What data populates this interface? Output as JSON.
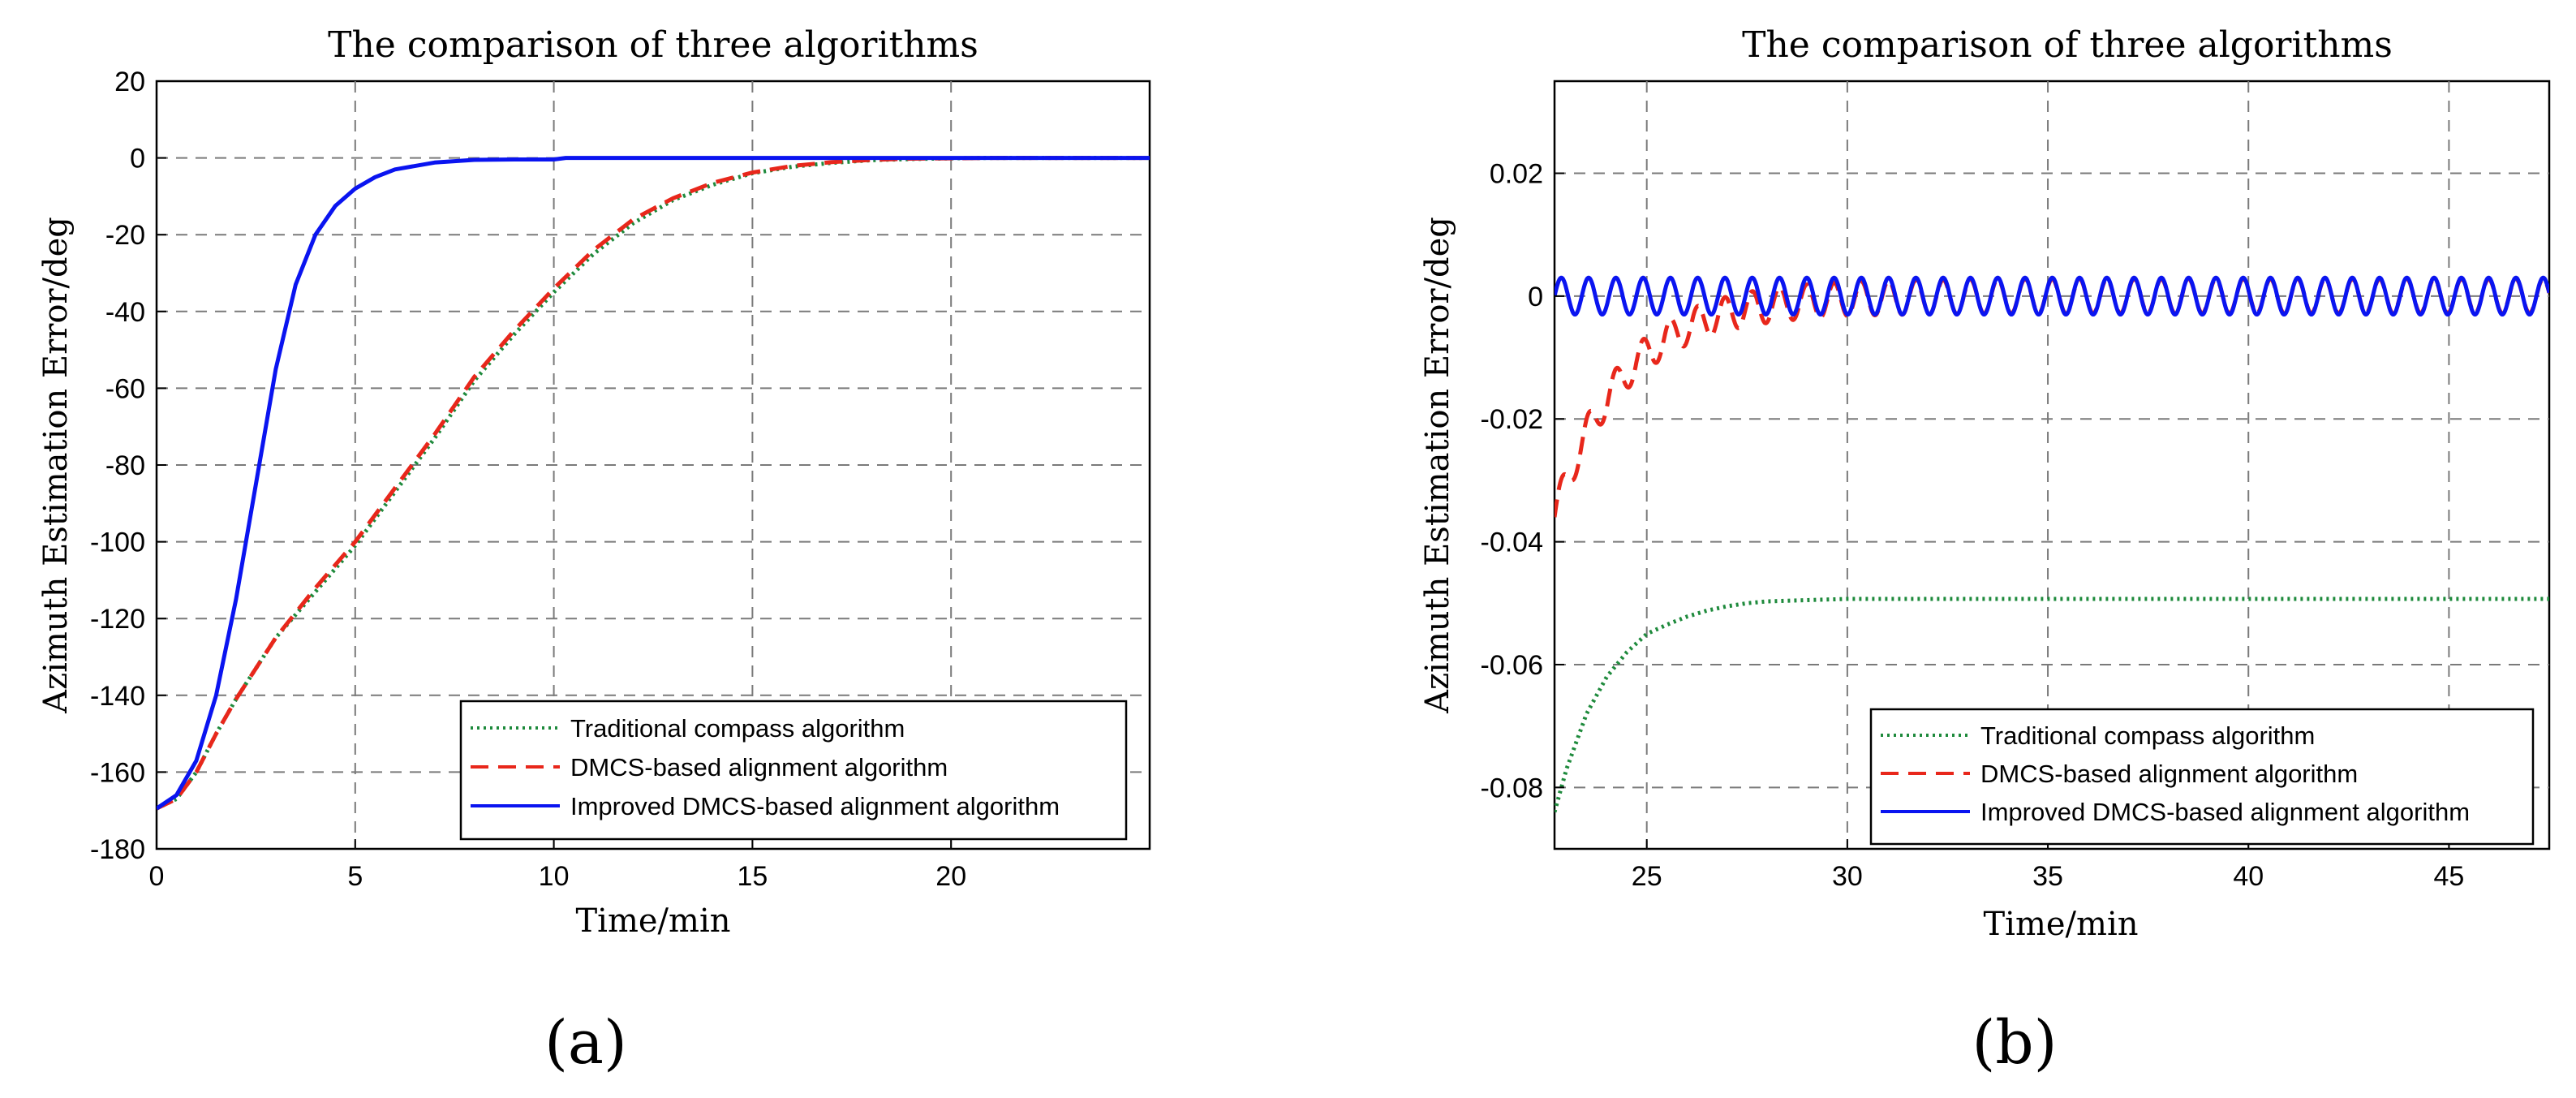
{
  "chart_data": [
    {
      "type": "line",
      "panel_label": "(a)",
      "title": "The comparison of three algorithms",
      "xlabel": "Time/min",
      "ylabel": "Azimuth Estimation Error/deg",
      "xlim": [
        0,
        25
      ],
      "ylim": [
        -180,
        20
      ],
      "xticks": [
        0,
        5,
        10,
        15,
        20
      ],
      "yticks": [
        20,
        0,
        -20,
        -40,
        -60,
        -80,
        -100,
        -120,
        -140,
        -160,
        -180
      ],
      "grid": true,
      "legend_position": "bottom-right",
      "series": [
        {
          "name": "Traditional compass algorithm",
          "color": "#1e8a3c",
          "style": "dotted",
          "x": [
            0,
            0.5,
            1,
            1.5,
            2,
            3,
            4,
            5,
            6,
            7,
            8,
            9,
            10,
            11,
            12,
            13,
            14,
            15,
            16,
            17,
            18,
            19,
            20,
            21,
            22,
            23,
            24,
            25
          ],
          "y": [
            -169.5,
            -167,
            -160,
            -150,
            -141,
            -125,
            -113,
            -101,
            -87,
            -73,
            -58,
            -46,
            -35,
            -25,
            -17,
            -11,
            -7,
            -4,
            -2.3,
            -1.3,
            -0.6,
            -0.3,
            -0.1,
            0,
            0,
            0,
            0,
            0
          ]
        },
        {
          "name": "DMCS-based alignment algorithm",
          "color": "#e8271b",
          "style": "dashed",
          "x": [
            0,
            0.5,
            1,
            1.5,
            2,
            3,
            4,
            5,
            6,
            7,
            8,
            9,
            10,
            11,
            12,
            13,
            14,
            15,
            16,
            17,
            18,
            19,
            20,
            21,
            22,
            23,
            24,
            25
          ],
          "y": [
            -169.5,
            -167,
            -160,
            -150,
            -141,
            -125,
            -112,
            -100,
            -86,
            -72,
            -57,
            -45,
            -34,
            -24,
            -16,
            -10.5,
            -6.5,
            -3.8,
            -2.1,
            -1.1,
            -0.5,
            -0.2,
            -0.1,
            0,
            0,
            0,
            0,
            0
          ]
        },
        {
          "name": "Improved DMCS-based alignment algorithm",
          "color": "#0a14f0",
          "style": "solid",
          "x": [
            0,
            0.5,
            1,
            1.5,
            2,
            2.5,
            3,
            3.5,
            4,
            4.5,
            5,
            5.5,
            6,
            7,
            8,
            9,
            10,
            10.3,
            11,
            12,
            14,
            16,
            18,
            20,
            22,
            25
          ],
          "y": [
            -169.5,
            -166,
            -157,
            -140,
            -115,
            -85,
            -55,
            -33,
            -20,
            -12.5,
            -8,
            -5,
            -3,
            -1.2,
            -0.5,
            -0.4,
            -0.4,
            0,
            0,
            0,
            0,
            0,
            0,
            0,
            0,
            0
          ]
        }
      ]
    },
    {
      "type": "line",
      "panel_label": "(b)",
      "title": "The comparison of three algorithms",
      "xlabel": "Time/min",
      "ylabel": "Azimuth Estimation Error/deg",
      "xlim": [
        22.7,
        47.5
      ],
      "ylim": [
        -0.09,
        0.035
      ],
      "xticks": [
        25,
        30,
        35,
        40,
        45
      ],
      "yticks": [
        0.02,
        0,
        -0.02,
        -0.04,
        -0.06,
        -0.08
      ],
      "grid": true,
      "legend_position": "bottom-right",
      "series": [
        {
          "name": "Traditional compass algorithm",
          "color": "#1e8a3c",
          "style": "dotted",
          "x": [
            22.7,
            23,
            23.5,
            24,
            24.5,
            25,
            25.5,
            26,
            26.5,
            27,
            27.5,
            28,
            29,
            30,
            35,
            40,
            45,
            47.5
          ],
          "y": [
            -0.084,
            -0.077,
            -0.068,
            -0.062,
            -0.058,
            -0.055,
            -0.0535,
            -0.0522,
            -0.0512,
            -0.0505,
            -0.05,
            -0.0497,
            -0.0495,
            -0.0493,
            -0.0493,
            -0.0493,
            -0.0493,
            -0.0493
          ]
        },
        {
          "name": "DMCS-based alignment algorithm",
          "color": "#e8271b",
          "style": "dashed",
          "x_start": 22.7,
          "x_end": 47.5,
          "osc_period": 0.68,
          "osc_amplitude": 0.0028,
          "drift_initial": -0.036,
          "drift_tau": 1.7
        },
        {
          "name": "Improved DMCS-based alignment algorithm",
          "color": "#0a14f0",
          "style": "solid",
          "x_start": 22.7,
          "x_end": 47.5,
          "osc_period": 0.68,
          "osc_amplitude": 0.003,
          "drift_initial": 0,
          "drift_tau": 1
        }
      ]
    }
  ]
}
